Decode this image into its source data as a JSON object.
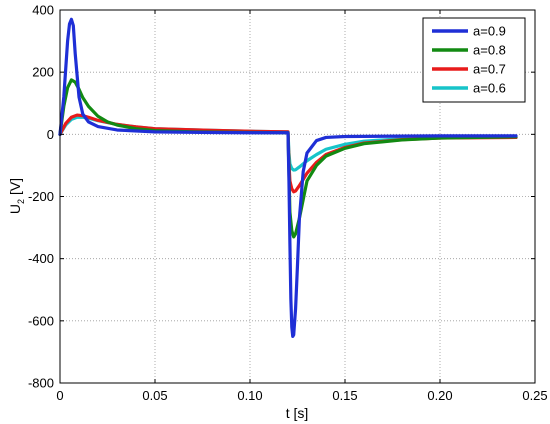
{
  "chart_data": {
    "type": "line",
    "title": "",
    "xlabel": "t  [s]",
    "ylabel_main": "U",
    "ylabel_sub": "2",
    "ylabel_unit": " [V]",
    "xlim": [
      0,
      0.25
    ],
    "ylim": [
      -800,
      400
    ],
    "xticks": [
      0,
      0.05,
      0.1,
      0.15,
      0.2,
      0.25
    ],
    "xtick_labels": [
      "0",
      "0.05",
      "0.10",
      "0.15",
      "0.20",
      "0.25"
    ],
    "yticks": [
      -800,
      -600,
      -400,
      -200,
      0,
      200,
      400
    ],
    "ytick_labels": [
      "-800",
      "-600",
      "-400",
      "-200",
      "0",
      "200",
      "400"
    ],
    "grid": true,
    "grid_style": "dotted",
    "legend_position": "top-right",
    "series": [
      {
        "name": "a=0.9",
        "color": "#1f2fd6",
        "points": [
          [
            0,
            0
          ],
          [
            0.002,
            120
          ],
          [
            0.004,
            300
          ],
          [
            0.005,
            355
          ],
          [
            0.006,
            370
          ],
          [
            0.007,
            350
          ],
          [
            0.008,
            260
          ],
          [
            0.01,
            120
          ],
          [
            0.012,
            65
          ],
          [
            0.015,
            40
          ],
          [
            0.02,
            25
          ],
          [
            0.03,
            14
          ],
          [
            0.05,
            8
          ],
          [
            0.08,
            6
          ],
          [
            0.1,
            5
          ],
          [
            0.12,
            5
          ],
          [
            0.1205,
            -150
          ],
          [
            0.121,
            -350
          ],
          [
            0.1215,
            -530
          ],
          [
            0.122,
            -620
          ],
          [
            0.1225,
            -650
          ],
          [
            0.123,
            -645
          ],
          [
            0.124,
            -560
          ],
          [
            0.125,
            -420
          ],
          [
            0.126,
            -270
          ],
          [
            0.128,
            -120
          ],
          [
            0.13,
            -60
          ],
          [
            0.135,
            -20
          ],
          [
            0.14,
            -10
          ],
          [
            0.15,
            -7
          ],
          [
            0.2,
            -5
          ],
          [
            0.24,
            -5
          ]
        ]
      },
      {
        "name": "a=0.8",
        "color": "#128a12",
        "points": [
          [
            0,
            0
          ],
          [
            0.002,
            90
          ],
          [
            0.004,
            150
          ],
          [
            0.006,
            175
          ],
          [
            0.008,
            168
          ],
          [
            0.01,
            145
          ],
          [
            0.012,
            118
          ],
          [
            0.015,
            90
          ],
          [
            0.02,
            58
          ],
          [
            0.025,
            40
          ],
          [
            0.03,
            30
          ],
          [
            0.04,
            18
          ],
          [
            0.05,
            12
          ],
          [
            0.07,
            8
          ],
          [
            0.1,
            6
          ],
          [
            0.12,
            5
          ],
          [
            0.1205,
            -120
          ],
          [
            0.121,
            -250
          ],
          [
            0.122,
            -310
          ],
          [
            0.123,
            -330
          ],
          [
            0.124,
            -320
          ],
          [
            0.126,
            -270
          ],
          [
            0.128,
            -210
          ],
          [
            0.13,
            -150
          ],
          [
            0.135,
            -100
          ],
          [
            0.14,
            -70
          ],
          [
            0.15,
            -45
          ],
          [
            0.16,
            -30
          ],
          [
            0.18,
            -18
          ],
          [
            0.2,
            -12
          ],
          [
            0.24,
            -8
          ]
        ]
      },
      {
        "name": "a=0.7",
        "color": "#e81b1b",
        "points": [
          [
            0,
            0
          ],
          [
            0.003,
            35
          ],
          [
            0.006,
            55
          ],
          [
            0.009,
            62
          ],
          [
            0.012,
            60
          ],
          [
            0.015,
            55
          ],
          [
            0.02,
            45
          ],
          [
            0.03,
            32
          ],
          [
            0.04,
            24
          ],
          [
            0.05,
            18
          ],
          [
            0.08,
            13
          ],
          [
            0.1,
            10
          ],
          [
            0.12,
            8
          ],
          [
            0.1205,
            -90
          ],
          [
            0.121,
            -150
          ],
          [
            0.122,
            -175
          ],
          [
            0.123,
            -185
          ],
          [
            0.124,
            -182
          ],
          [
            0.126,
            -165
          ],
          [
            0.128,
            -145
          ],
          [
            0.13,
            -125
          ],
          [
            0.135,
            -90
          ],
          [
            0.14,
            -65
          ],
          [
            0.15,
            -42
          ],
          [
            0.16,
            -28
          ],
          [
            0.18,
            -17
          ],
          [
            0.2,
            -12
          ],
          [
            0.24,
            -10
          ]
        ]
      },
      {
        "name": "a=0.6",
        "color": "#17c4c9",
        "points": [
          [
            0,
            0
          ],
          [
            0.003,
            30
          ],
          [
            0.006,
            48
          ],
          [
            0.009,
            55
          ],
          [
            0.012,
            55
          ],
          [
            0.015,
            52
          ],
          [
            0.02,
            44
          ],
          [
            0.03,
            32
          ],
          [
            0.04,
            24
          ],
          [
            0.05,
            18
          ],
          [
            0.08,
            13
          ],
          [
            0.1,
            10
          ],
          [
            0.12,
            8
          ],
          [
            0.1205,
            -60
          ],
          [
            0.121,
            -95
          ],
          [
            0.122,
            -110
          ],
          [
            0.123,
            -115
          ],
          [
            0.124,
            -114
          ],
          [
            0.126,
            -105
          ],
          [
            0.128,
            -95
          ],
          [
            0.13,
            -85
          ],
          [
            0.135,
            -65
          ],
          [
            0.14,
            -48
          ],
          [
            0.15,
            -32
          ],
          [
            0.16,
            -22
          ],
          [
            0.18,
            -14
          ],
          [
            0.2,
            -10
          ],
          [
            0.24,
            -10
          ]
        ]
      }
    ]
  }
}
